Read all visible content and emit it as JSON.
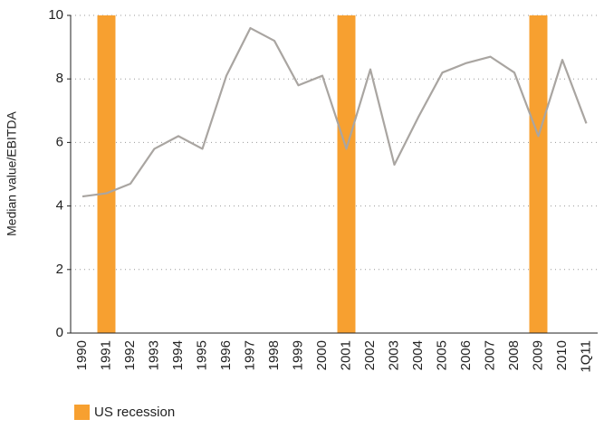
{
  "chart_data": {
    "type": "line",
    "y_label": "Median value/EBITDA",
    "categories": [
      "1990",
      "1991",
      "1992",
      "1993",
      "1994",
      "1995",
      "1996",
      "1997",
      "1998",
      "1999",
      "2000",
      "2001",
      "2002",
      "2003",
      "2004",
      "2005",
      "2006",
      "2007",
      "2008",
      "2009",
      "2010",
      "1Q11"
    ],
    "series": [
      {
        "color": "#a9a5a1",
        "values": [
          4.3,
          4.4,
          4.7,
          5.8,
          6.2,
          5.8,
          8.1,
          9.6,
          9.2,
          7.8,
          8.1,
          5.8,
          8.3,
          5.3,
          6.8,
          8.2,
          8.5,
          8.7,
          8.2,
          6.2,
          8.6,
          6.6
        ]
      },
      {
        "name": "US recession",
        "type": "bar",
        "color": "#f7a030",
        "values": [
          null,
          10,
          null,
          null,
          null,
          null,
          null,
          null,
          null,
          null,
          null,
          10,
          null,
          null,
          null,
          null,
          null,
          null,
          null,
          10,
          null,
          null
        ]
      }
    ],
    "ylim": [
      0,
      10
    ],
    "yticks": [
      0,
      2,
      4,
      6,
      8,
      10
    ],
    "grid": true,
    "legend": "bottom-left"
  }
}
